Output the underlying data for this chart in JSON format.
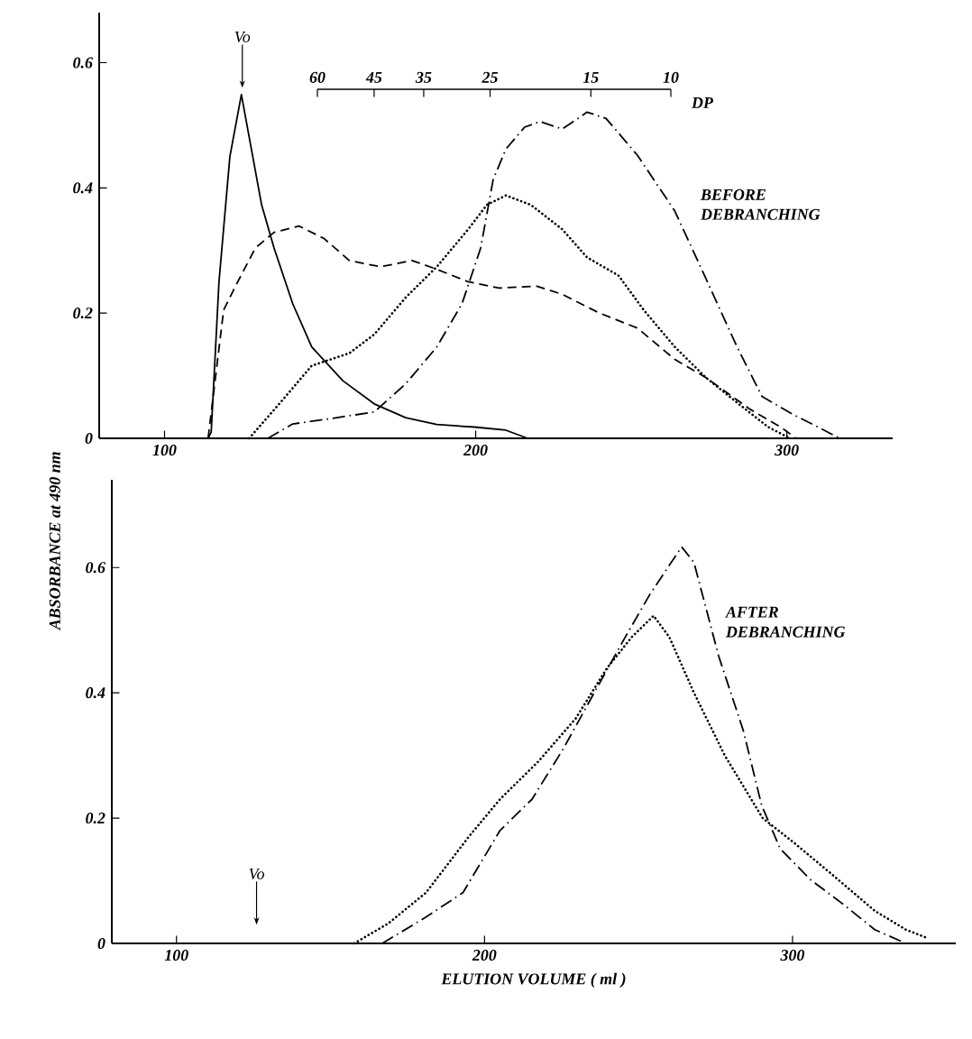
{
  "chart_data": [
    {
      "type": "line",
      "xlabel": null,
      "ylabel": "ABSORBANCE at 490 nm",
      "x2label": "DP",
      "xlim": [
        79,
        334
      ],
      "xticks": [
        100,
        200,
        300
      ],
      "ylim": [
        0,
        0.68
      ],
      "yticks": [
        0,
        0.2,
        0.4,
        0.6
      ],
      "x2lim": [
        60,
        10
      ],
      "x2ticks": [
        60,
        45,
        35,
        25,
        15,
        10
      ],
      "log": "x2",
      "annotations": [
        "BEFORE DEBRANCHING",
        {
          "text": "Vo",
          "x": 125,
          "y": 0.56
        }
      ],
      "series": [
        {
          "color": "#000000",
          "line_style": "solid",
          "x": [
            114,
            115,
            117.5,
            121,
            124.7,
            131.2,
            135.2,
            141.2,
            147.3,
            157.3,
            167.4,
            177.5,
            187.5,
            199.6,
            209.7,
            216.7
          ],
          "values": [
            0,
            0.01,
            0.25,
            0.45,
            0.549,
            0.373,
            0.304,
            0.215,
            0.146,
            0.092,
            0.055,
            0.033,
            0.022,
            0.018,
            0.013,
            0
          ]
        },
        {
          "color": "#000000",
          "line_style": "dashed",
          "x": [
            114,
            119,
            123,
            129.2,
            135.2,
            143.3,
            151.3,
            159.4,
            169.4,
            179.5,
            187.5,
            197.6,
            207.6,
            219.7,
            227.8,
            239.8,
            252,
            264,
            274,
            288,
            298,
            303
          ],
          "values": [
            0,
            0.205,
            0.245,
            0.304,
            0.329,
            0.339,
            0.319,
            0.284,
            0.274,
            0.284,
            0.27,
            0.25,
            0.24,
            0.243,
            0.23,
            0.2,
            0.176,
            0.126,
            0.097,
            0.047,
            0.018,
            0
          ]
        },
        {
          "color": "#000000",
          "line_style": "dotted",
          "x": [
            127.2,
            137.2,
            147.3,
            159.4,
            167.4,
            177.5,
            187.5,
            197.6,
            203.6,
            209.7,
            217.7,
            227.8,
            235.8,
            245.9,
            254,
            264,
            274,
            284,
            294,
            301
          ],
          "values": [
            0,
            0.057,
            0.116,
            0.136,
            0.166,
            0.225,
            0.274,
            0.334,
            0.373,
            0.388,
            0.373,
            0.334,
            0.289,
            0.26,
            0.205,
            0.146,
            0.097,
            0.057,
            0.018,
            0
          ]
        },
        {
          "color": "#000000",
          "line_style": "dashdot",
          "x": [
            133.2,
            141.2,
            151.3,
            167.4,
            177.5,
            187.5,
            195.6,
            201.6,
            205.6,
            209.7,
            215.7,
            220.7,
            227.8,
            235.8,
            241.9,
            252,
            264,
            274,
            284,
            292,
            302,
            310,
            317
          ],
          "values": [
            0,
            0.023,
            0.03,
            0.042,
            0.087,
            0.146,
            0.215,
            0.304,
            0.413,
            0.462,
            0.497,
            0.506,
            0.494,
            0.521,
            0.511,
            0.452,
            0.363,
            0.255,
            0.146,
            0.067,
            0.038,
            0.018,
            0
          ]
        }
      ]
    },
    {
      "type": "line",
      "xlabel": "ELUTION VOLUME ( ml )",
      "xlim": [
        79,
        353
      ],
      "xticks": [
        100,
        200,
        300
      ],
      "ylim": [
        0,
        0.74
      ],
      "yticks": [
        0,
        0.2,
        0.4,
        0.6
      ],
      "annotations": [
        "AFTER DEBRANCHING",
        {
          "text": "Vo",
          "x": 126,
          "y": 0.03
        }
      ],
      "series": [
        {
          "color": "#000000",
          "line_style": "dashdot",
          "x": [
            166.8,
            181,
            193,
            205,
            215.4,
            225.5,
            235.6,
            245.7,
            253.8,
            264,
            268,
            276,
            284,
            290,
            296,
            306,
            316.6,
            326.7,
            336.8
          ],
          "values": [
            0,
            0.042,
            0.081,
            0.18,
            0.23,
            0.31,
            0.4,
            0.489,
            0.558,
            0.633,
            0.608,
            0.459,
            0.34,
            0.22,
            0.151,
            0.101,
            0.062,
            0.022,
            0
          ]
        },
        {
          "color": "#000000",
          "line_style": "dotted",
          "x": [
            157.7,
            168.8,
            181,
            195,
            205,
            217.4,
            229.6,
            239.7,
            247.8,
            254.9,
            260,
            268,
            278,
            290.3,
            300.4,
            312.6,
            326.7,
            336.8,
            343
          ],
          "values": [
            0,
            0.032,
            0.081,
            0.171,
            0.23,
            0.29,
            0.359,
            0.439,
            0.489,
            0.523,
            0.489,
            0.4,
            0.3,
            0.2,
            0.161,
            0.111,
            0.052,
            0.022,
            0.01
          ]
        }
      ]
    }
  ]
}
